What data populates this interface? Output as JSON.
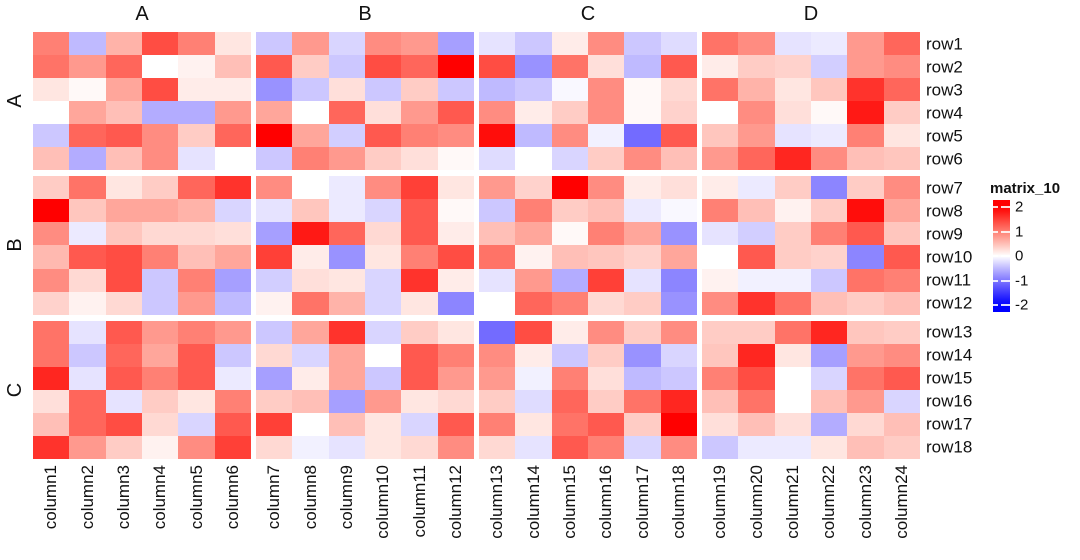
{
  "background": "#FFFFFF",
  "text_color": "#111111",
  "chart_data": {
    "type": "heatmap",
    "legend": {
      "title": "matrix_10",
      "ticks": [
        2,
        1,
        0,
        -1,
        -2
      ],
      "range": [
        -2,
        2
      ],
      "color_max": "#FF0000",
      "color_mid": "#FFFFFF",
      "color_min": "#0000FF",
      "position": "right"
    },
    "column_groups": [
      {
        "label": "A"
      },
      {
        "label": "B"
      },
      {
        "label": "C"
      },
      {
        "label": "D"
      }
    ],
    "row_groups": [
      {
        "label": "A"
      },
      {
        "label": "B"
      },
      {
        "label": "C"
      }
    ],
    "columns": [
      "column1",
      "column2",
      "column3",
      "column4",
      "column5",
      "column6",
      "column7",
      "column8",
      "column9",
      "column10",
      "column11",
      "column12",
      "column13",
      "column14",
      "column15",
      "column16",
      "column17",
      "column18",
      "column19",
      "column20",
      "column21",
      "column22",
      "column23",
      "column24"
    ],
    "rows": [
      "row1",
      "row2",
      "row3",
      "row4",
      "row5",
      "row6",
      "row7",
      "row8",
      "row9",
      "row10",
      "row11",
      "row12",
      "row13",
      "row14",
      "row15",
      "row16",
      "row17",
      "row18"
    ],
    "values": [
      [
        1.0,
        -0.5,
        0.6,
        1.4,
        1.0,
        0.2,
        -0.4,
        0.8,
        -0.3,
        0.9,
        0.8,
        -0.7,
        -0.2,
        -0.4,
        0.15,
        0.9,
        -0.4,
        -0.25,
        1.1,
        0.9,
        -0.2,
        -0.15,
        0.8,
        1.2
      ],
      [
        1.1,
        0.8,
        1.2,
        0.0,
        0.1,
        0.5,
        1.3,
        0.4,
        -0.4,
        1.4,
        1.2,
        2.0,
        1.4,
        -0.8,
        1.1,
        0.25,
        -0.5,
        1.3,
        0.15,
        0.4,
        0.35,
        -0.35,
        0.8,
        0.9
      ],
      [
        0.2,
        0.05,
        0.7,
        1.4,
        0.15,
        0.15,
        -0.8,
        -0.4,
        0.25,
        -0.4,
        0.4,
        -0.4,
        -0.5,
        -0.4,
        -0.05,
        0.9,
        0.05,
        0.3,
        1.1,
        0.6,
        0.2,
        0.45,
        1.6,
        1.2
      ],
      [
        0.0,
        0.7,
        0.5,
        -0.6,
        -0.6,
        0.8,
        0.7,
        0.0,
        1.2,
        0.25,
        0.8,
        1.3,
        0.9,
        0.15,
        0.4,
        0.9,
        0.05,
        0.35,
        0.0,
        0.9,
        0.25,
        0.05,
        1.8,
        0.4
      ],
      [
        -0.4,
        1.2,
        1.3,
        0.9,
        0.4,
        1.2,
        2.0,
        0.7,
        -0.35,
        1.3,
        1.0,
        0.9,
        1.9,
        -0.5,
        0.9,
        -0.1,
        -1.1,
        1.3,
        0.45,
        0.8,
        -0.2,
        -0.15,
        1.0,
        0.2
      ],
      [
        0.5,
        -0.6,
        0.5,
        0.9,
        -0.2,
        0.0,
        -0.4,
        1.0,
        0.8,
        0.4,
        0.25,
        0.05,
        -0.25,
        0.0,
        -0.3,
        0.4,
        0.9,
        0.5,
        0.8,
        1.2,
        1.7,
        0.9,
        0.5,
        0.45
      ],
      [
        0.4,
        1.1,
        0.2,
        0.4,
        1.2,
        1.6,
        0.9,
        0.0,
        -0.15,
        0.9,
        1.5,
        0.2,
        0.8,
        0.35,
        2.0,
        0.9,
        0.15,
        0.25,
        0.15,
        -0.15,
        0.4,
        -0.9,
        0.4,
        0.9
      ],
      [
        2.0,
        0.45,
        0.7,
        0.7,
        0.6,
        -0.3,
        -0.2,
        0.45,
        -0.15,
        -0.3,
        1.3,
        0.05,
        -0.4,
        1.0,
        0.4,
        0.5,
        -0.15,
        -0.05,
        1.0,
        0.5,
        0.1,
        0.4,
        1.9,
        0.7
      ],
      [
        0.9,
        -0.15,
        0.45,
        0.3,
        0.3,
        0.25,
        -0.7,
        1.8,
        1.2,
        0.3,
        1.3,
        0.15,
        0.5,
        0.7,
        0.05,
        1.0,
        0.7,
        -0.8,
        -0.2,
        -0.35,
        0.4,
        1.0,
        1.3,
        0.45
      ],
      [
        0.55,
        1.3,
        1.4,
        1.0,
        0.5,
        0.7,
        1.5,
        0.15,
        -0.8,
        0.2,
        1.0,
        1.4,
        1.1,
        0.1,
        0.5,
        0.45,
        0.35,
        0.7,
        0.0,
        1.3,
        0.4,
        0.35,
        -0.9,
        1.3
      ],
      [
        0.9,
        0.3,
        1.4,
        -0.4,
        1.0,
        -0.7,
        -0.35,
        0.25,
        0.2,
        -0.3,
        1.6,
        0.15,
        -0.2,
        0.8,
        -0.6,
        1.5,
        -0.2,
        -0.9,
        0.1,
        -0.1,
        -0.1,
        -0.4,
        1.1,
        1.0
      ],
      [
        0.35,
        0.1,
        0.3,
        -0.4,
        0.8,
        -0.5,
        0.1,
        1.1,
        0.6,
        -0.3,
        0.2,
        -0.9,
        0.0,
        1.2,
        1.0,
        0.3,
        0.4,
        -0.8,
        0.9,
        1.6,
        1.1,
        0.5,
        0.4,
        0.5
      ],
      [
        1.1,
        -0.2,
        1.3,
        0.8,
        1.0,
        0.8,
        -0.4,
        0.7,
        1.6,
        -0.3,
        0.4,
        0.2,
        -1.1,
        1.4,
        0.15,
        0.9,
        0.4,
        0.9,
        0.4,
        0.4,
        1.1,
        1.7,
        0.45,
        0.4
      ],
      [
        1.1,
        -0.4,
        1.2,
        0.7,
        1.3,
        -0.4,
        0.3,
        -0.3,
        0.7,
        0.0,
        1.3,
        1.0,
        0.9,
        0.15,
        -0.4,
        0.4,
        -0.8,
        -0.3,
        0.45,
        1.7,
        0.2,
        -0.7,
        0.8,
        0.9
      ],
      [
        1.7,
        -0.2,
        1.3,
        1.0,
        1.3,
        -0.15,
        -0.7,
        0.15,
        0.7,
        -0.4,
        1.3,
        0.8,
        0.8,
        -0.1,
        1.0,
        0.25,
        -0.5,
        -0.4,
        1.0,
        1.4,
        0.0,
        -0.3,
        1.1,
        1.3
      ],
      [
        0.25,
        1.2,
        -0.2,
        0.4,
        0.2,
        1.0,
        0.4,
        0.5,
        -0.7,
        0.8,
        0.2,
        0.3,
        0.4,
        -0.25,
        1.2,
        0.4,
        1.1,
        1.7,
        0.5,
        1.1,
        0.0,
        0.5,
        0.8,
        -0.3
      ],
      [
        0.5,
        1.2,
        1.4,
        0.3,
        -0.3,
        1.3,
        1.5,
        0.0,
        0.5,
        0.2,
        -0.3,
        1.3,
        1.0,
        0.2,
        1.1,
        1.3,
        0.4,
        2.0,
        0.25,
        0.5,
        0.25,
        -0.6,
        0.3,
        0.5
      ],
      [
        1.6,
        0.8,
        0.4,
        0.1,
        0.9,
        1.5,
        0.3,
        -0.1,
        -0.2,
        0.2,
        0.3,
        0.9,
        0.3,
        -0.2,
        1.3,
        1.0,
        -0.3,
        0.9,
        -0.4,
        -0.15,
        -0.15,
        0.2,
        0.5,
        0.4
      ]
    ]
  }
}
